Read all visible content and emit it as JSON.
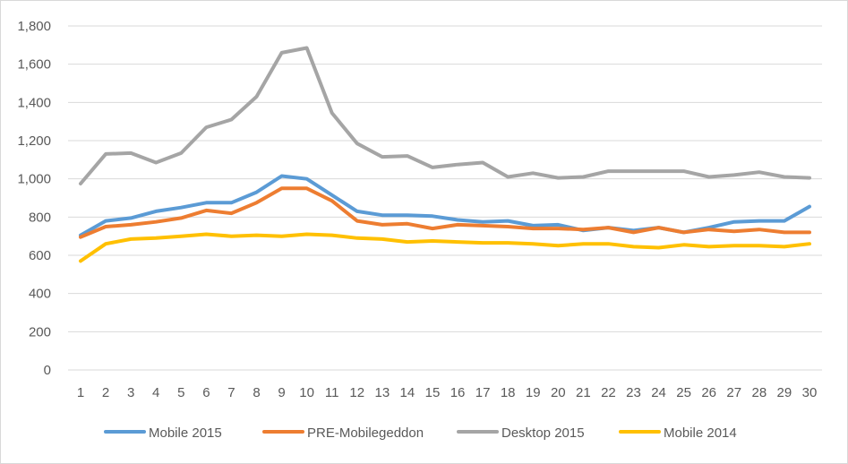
{
  "chart_data": {
    "type": "line",
    "title": "",
    "xlabel": "",
    "ylabel": "",
    "x": [
      1,
      2,
      3,
      4,
      5,
      6,
      7,
      8,
      9,
      10,
      11,
      12,
      13,
      14,
      15,
      16,
      17,
      18,
      19,
      20,
      21,
      22,
      23,
      24,
      25,
      26,
      27,
      28,
      29,
      30
    ],
    "ylim": [
      0,
      1800
    ],
    "yticks": [
      0,
      200,
      400,
      600,
      800,
      1000,
      1200,
      1400,
      1600,
      1800
    ],
    "ytick_labels": [
      "0",
      "200",
      "400",
      "600",
      "800",
      "1,000",
      "1,200",
      "1,400",
      "1,600",
      "1,800"
    ],
    "grid": true,
    "legend_position": "bottom",
    "series": [
      {
        "name": "Mobile 2015",
        "color": "#5b9bd5",
        "values": [
          705,
          780,
          795,
          830,
          850,
          875,
          875,
          930,
          1015,
          1000,
          915,
          830,
          810,
          810,
          805,
          785,
          775,
          780,
          755,
          760,
          730,
          745,
          730,
          745,
          720,
          745,
          775,
          780,
          780,
          855
        ]
      },
      {
        "name": "PRE-Mobilegeddon",
        "color": "#ed7d31",
        "values": [
          695,
          750,
          760,
          775,
          795,
          835,
          820,
          875,
          950,
          950,
          885,
          780,
          760,
          765,
          740,
          760,
          755,
          750,
          740,
          740,
          735,
          745,
          720,
          745,
          720,
          735,
          725,
          735,
          720,
          720
        ]
      },
      {
        "name": "Desktop 2015",
        "color": "#a5a5a5",
        "values": [
          975,
          1130,
          1135,
          1085,
          1135,
          1270,
          1310,
          1430,
          1660,
          1685,
          1345,
          1185,
          1115,
          1120,
          1060,
          1075,
          1085,
          1010,
          1030,
          1005,
          1010,
          1040,
          1040,
          1040,
          1040,
          1010,
          1020,
          1035,
          1010,
          1005
        ]
      },
      {
        "name": "Mobile 2014",
        "color": "#ffc000",
        "values": [
          570,
          660,
          685,
          690,
          700,
          710,
          700,
          705,
          700,
          710,
          705,
          690,
          685,
          670,
          675,
          670,
          665,
          665,
          660,
          650,
          660,
          660,
          645,
          640,
          655,
          645,
          650,
          650,
          645,
          660
        ]
      }
    ]
  }
}
